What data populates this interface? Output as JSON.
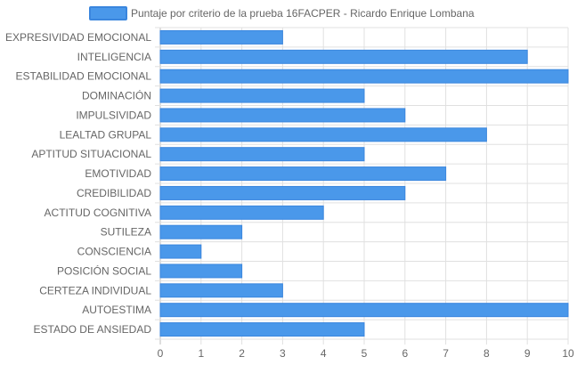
{
  "chart_data": {
    "type": "bar",
    "orientation": "horizontal",
    "categories": [
      "EXPRESIVIDAD EMOCIONAL",
      "INTELIGENCIA",
      "ESTABILIDAD EMOCIONAL",
      "DOMINACIÓN",
      "IMPULSIVIDAD",
      "LEALTAD GRUPAL",
      "APTITUD SITUACIONAL",
      "EMOTIVIDAD",
      "CREDIBILIDAD",
      "ACTITUD COGNITIVA",
      "SUTILEZA",
      "CONSCIENCIA",
      "POSICIÓN SOCIAL",
      "CERTEZA INDIVIDUAL",
      "AUTOESTIMA",
      "ESTADO DE ANSIEDAD"
    ],
    "series": [
      {
        "name": "Puntaje por criterio de la prueba 16FACPER - Ricardo Enrique Lombana",
        "values": [
          3,
          9,
          10,
          5,
          6,
          8,
          5,
          7,
          6,
          4,
          2,
          1,
          2,
          3,
          10,
          5
        ],
        "color": "#4a98ea",
        "border_color": "#3a86de"
      }
    ],
    "xlim": [
      0,
      10
    ],
    "x_ticks": [
      "0",
      "1",
      "2",
      "3",
      "4",
      "5",
      "6",
      "7",
      "8",
      "9",
      "10"
    ],
    "grid": true,
    "legend_position": "top"
  }
}
